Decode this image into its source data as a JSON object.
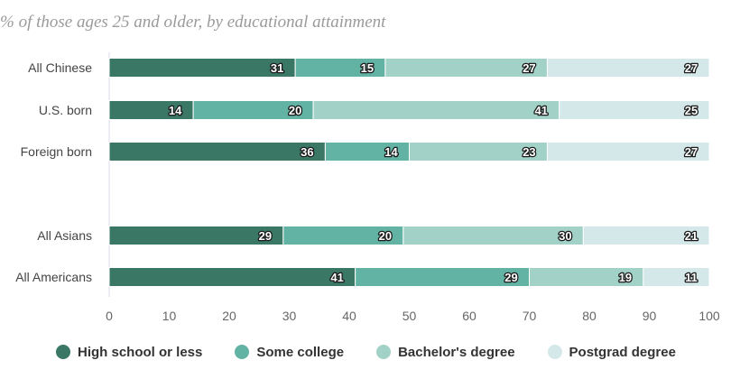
{
  "chart_data": {
    "type": "bar",
    "orientation": "horizontal",
    "stacked": true,
    "subtitle": "% of those ages 25 and older, by educational attainment",
    "categories": [
      "All Chinese",
      "U.S. born",
      "Foreign born",
      "All Asians",
      "All Americans"
    ],
    "series": [
      {
        "name": "High school or less",
        "color": "#3a7765",
        "values": [
          31,
          14,
          36,
          29,
          41
        ]
      },
      {
        "name": "Some college",
        "color": "#63b3a5",
        "values": [
          15,
          20,
          14,
          20,
          29
        ]
      },
      {
        "name": "Bachelor's degree",
        "color": "#a2d2c7",
        "values": [
          27,
          41,
          23,
          30,
          19
        ]
      },
      {
        "name": "Postgrad degree",
        "color": "#d4e8ea",
        "values": [
          27,
          25,
          27,
          21,
          11
        ]
      }
    ],
    "xlim": [
      0,
      100
    ],
    "xticks": [
      "0",
      "10",
      "20",
      "30",
      "40",
      "50",
      "60",
      "70",
      "80",
      "90",
      "100"
    ],
    "grid": false,
    "legend_position": "bottom"
  }
}
